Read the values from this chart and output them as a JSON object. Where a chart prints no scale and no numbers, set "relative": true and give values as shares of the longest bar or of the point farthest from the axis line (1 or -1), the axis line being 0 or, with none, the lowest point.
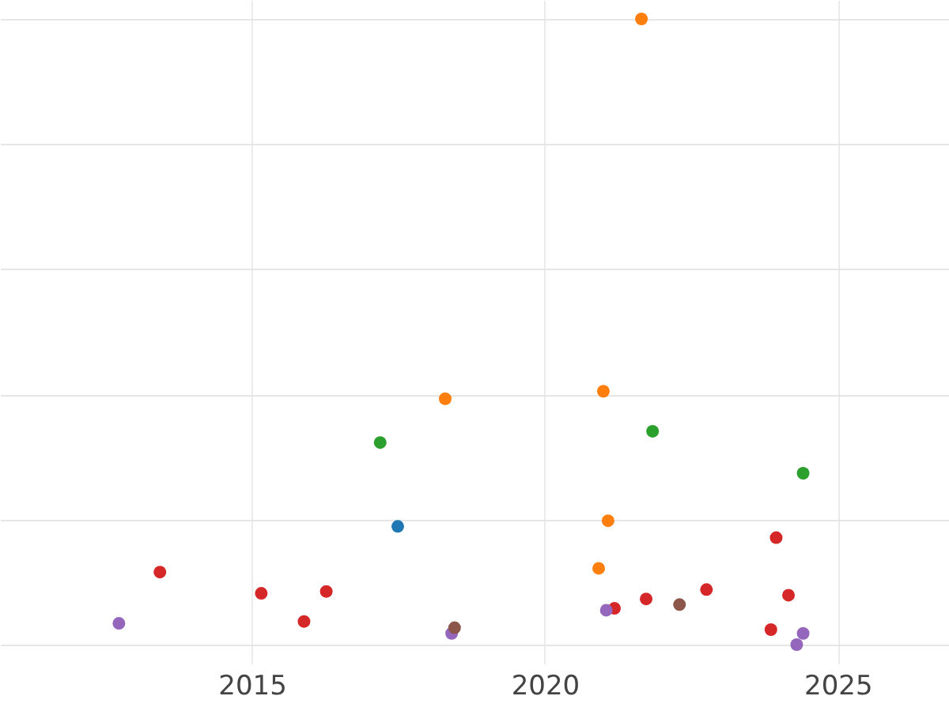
{
  "chart_data": {
    "type": "scatter",
    "relative": true,
    "grid": true,
    "legend": false,
    "marker": "circle",
    "xlim": [
      2010.7,
      2026.9
    ],
    "xticks": [
      2015,
      2020,
      2025
    ],
    "series": [
      {
        "color": "#1f77b4",
        "x": [
          2017.49
        ],
        "values": [
          0.189
        ]
      },
      {
        "color": "#ff7f0e",
        "x": [
          2021.65,
          2018.3,
          2021.0,
          2021.08,
          2020.92
        ],
        "values": [
          1.0,
          0.393,
          0.405,
          0.198,
          0.122
        ]
      },
      {
        "color": "#2ca02c",
        "x": [
          2017.19,
          2021.84,
          2024.41
        ],
        "values": [
          0.323,
          0.341,
          0.274
        ]
      },
      {
        "color": "#d62728",
        "x": [
          2013.43,
          2015.16,
          2015.89,
          2016.27,
          2021.19,
          2021.73,
          2022.76,
          2023.95,
          2023.86,
          2024.16
        ],
        "values": [
          0.116,
          0.082,
          0.037,
          0.085,
          0.058,
          0.073,
          0.088,
          0.171,
          0.024,
          0.079
        ]
      },
      {
        "color": "#9467bd",
        "x": [
          2012.73,
          2018.41,
          2021.05,
          2024.3,
          2024.41
        ],
        "values": [
          0.034,
          0.018,
          0.055,
          0,
          0.018
        ]
      },
      {
        "color": "#8c564b",
        "x": [
          2018.46,
          2022.3
        ],
        "values": [
          0.027,
          0.064
        ]
      }
    ]
  }
}
